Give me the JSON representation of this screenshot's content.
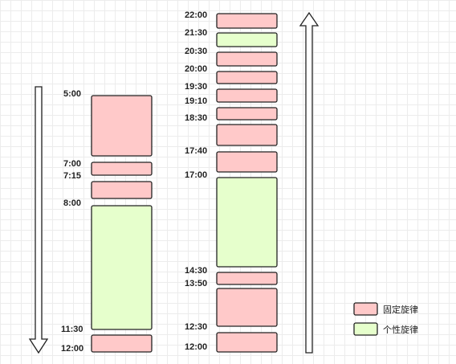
{
  "colors": {
    "fixed": "#ffc9c9",
    "personal": "#e6ffcc",
    "stroke": "#222222"
  },
  "legend": {
    "fixed_label": "固定旋律",
    "personal_label": "个性旋律"
  },
  "left_column": {
    "direction": "down",
    "time_labels": [
      "5:00",
      "7:00",
      "7:15",
      "8:00",
      "11:30",
      "12:00"
    ],
    "blocks": [
      {
        "type": "fixed",
        "start": "5:00",
        "end": "7:00"
      },
      {
        "type": "fixed",
        "start": "7:00",
        "end": "7:15"
      },
      {
        "type": "fixed",
        "start": "7:15",
        "end": "8:00"
      },
      {
        "type": "personal",
        "start": "8:00",
        "end": "11:30"
      },
      {
        "type": "fixed",
        "start": "11:30",
        "end": "12:00"
      }
    ]
  },
  "right_column": {
    "direction": "up",
    "time_labels": [
      "22:00",
      "21:30",
      "20:30",
      "20:00",
      "19:30",
      "19:10",
      "18:30",
      "17:40",
      "17:00",
      "14:30",
      "13:50",
      "12:30",
      "12:00"
    ],
    "blocks": [
      {
        "type": "fixed",
        "start": "21:30",
        "end": "22:00"
      },
      {
        "type": "personal",
        "start": "20:30",
        "end": "21:30"
      },
      {
        "type": "fixed",
        "start": "20:00",
        "end": "20:30"
      },
      {
        "type": "fixed",
        "start": "19:30",
        "end": "20:00"
      },
      {
        "type": "fixed",
        "start": "19:10",
        "end": "19:30"
      },
      {
        "type": "fixed",
        "start": "18:30",
        "end": "19:10"
      },
      {
        "type": "fixed",
        "start": "17:40",
        "end": "18:30"
      },
      {
        "type": "fixed",
        "start": "17:00",
        "end": "17:40"
      },
      {
        "type": "personal",
        "start": "14:30",
        "end": "17:00"
      },
      {
        "type": "fixed",
        "start": "13:50",
        "end": "14:30"
      },
      {
        "type": "fixed",
        "start": "12:30",
        "end": "13:50"
      },
      {
        "type": "fixed",
        "start": "12:00",
        "end": "12:30"
      }
    ]
  }
}
